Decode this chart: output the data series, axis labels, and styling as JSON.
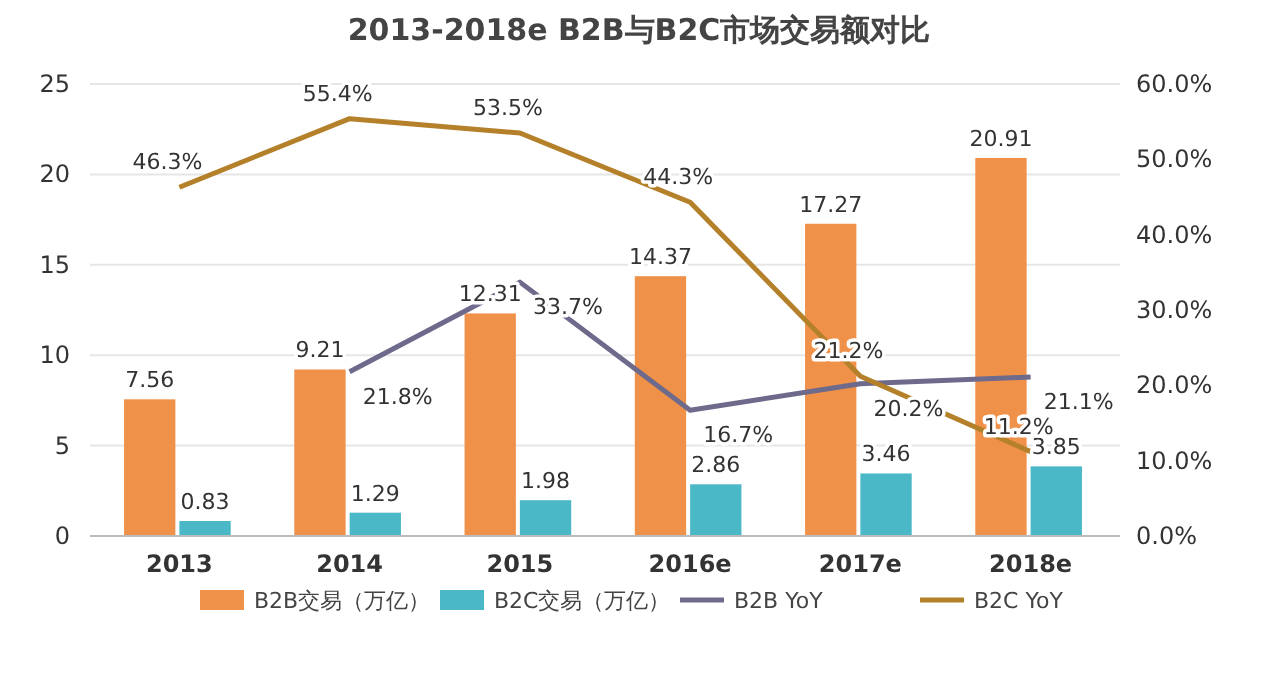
{
  "chart_data": {
    "type": "bar",
    "title": "2013-2018e B2B与B2C市场交易额对比",
    "categories": [
      "2013",
      "2014",
      "2015",
      "2016e",
      "2017e",
      "2018e"
    ],
    "series": [
      {
        "name": "B2B交易（万亿）",
        "color": "#f0914a",
        "values": [
          7.56,
          9.21,
          12.31,
          14.37,
          17.27,
          20.91
        ],
        "value_labels": [
          "7.56",
          "9.21",
          "12.31",
          "14.37",
          "17.27",
          "20.91"
        ]
      },
      {
        "name": "B2C交易（万亿）",
        "color": "#4bb8c8",
        "values": [
          0.83,
          1.29,
          1.98,
          2.86,
          3.46,
          3.85
        ],
        "value_labels": [
          "0.83",
          "1.29",
          "1.98",
          "2.86",
          "3.46",
          "3.85"
        ]
      },
      {
        "name": "B2B YoY",
        "type": "line",
        "axis": "y2",
        "color": "#6e6a8c",
        "values": [
          null,
          21.8,
          33.7,
          16.7,
          20.2,
          21.1
        ],
        "value_labels": [
          null,
          "21.8%",
          "33.7%",
          "16.7%",
          "20.2%",
          "21.1%"
        ]
      },
      {
        "name": "B2C YoY",
        "type": "line",
        "axis": "y2",
        "color": "#b5802a",
        "values": [
          46.3,
          55.4,
          53.5,
          44.3,
          21.2,
          11.2
        ],
        "value_labels": [
          "46.3%",
          "55.4%",
          "53.5%",
          "44.3%",
          "21.2%",
          "11.2%"
        ]
      }
    ],
    "ylim": [
      0,
      25
    ],
    "yticks": [
      0,
      5,
      10,
      15,
      20,
      25
    ],
    "y2lim": [
      0,
      60
    ],
    "y2ticks": [
      {
        "value": 0,
        "label": "0.0%"
      },
      {
        "value": 10,
        "label": "10.0%"
      },
      {
        "value": 20,
        "label": "20.0%"
      },
      {
        "value": 30,
        "label": "30.0%"
      },
      {
        "value": 40,
        "label": "40.0%"
      },
      {
        "value": 50,
        "label": "50.0%"
      },
      {
        "value": 60,
        "label": "60.0%"
      }
    ],
    "grid": "y",
    "legend": "bottom",
    "marker": "none"
  }
}
